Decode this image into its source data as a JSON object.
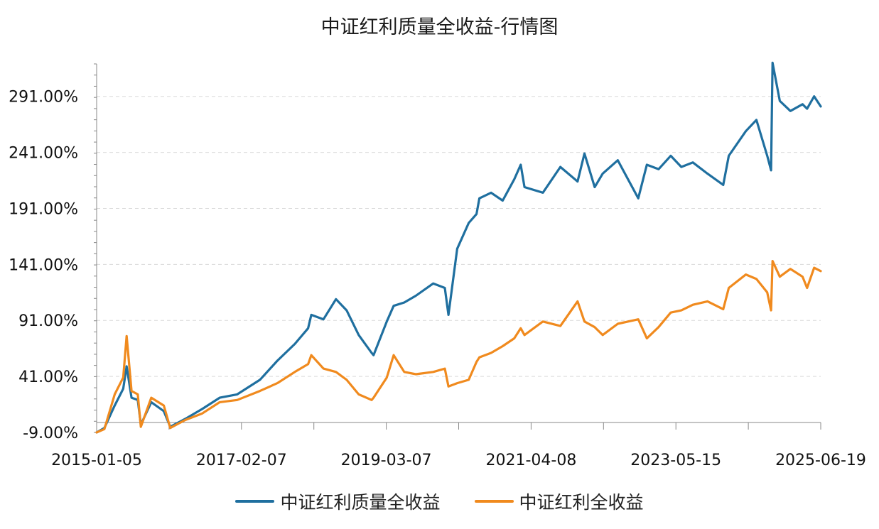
{
  "chart_data": {
    "type": "line",
    "title": "中证红利质量全收益-行情图",
    "xlabel": "",
    "ylabel": "",
    "ylim": [
      -9,
      320
    ],
    "y_ticks": [
      "-9.00%",
      "41.00%",
      "91.00%",
      "141.00%",
      "191.00%",
      "241.00%",
      "291.00%"
    ],
    "y_tick_values": [
      -9,
      41,
      91,
      141,
      191,
      241,
      291
    ],
    "x_range": [
      "2015-01-05",
      "2025-06-19"
    ],
    "x_ticks": [
      "2015-01-05",
      "2017-02-07",
      "2019-03-07",
      "2021-04-08",
      "2023-05-15",
      "2025-06-19"
    ],
    "grid": true,
    "legend_position": "bottom",
    "series": [
      {
        "name": "中证红利质量全收益",
        "color": "#1f6f9f",
        "x": [
          "2015-01-05",
          "2015-02-15",
          "2015-04-10",
          "2015-05-25",
          "2015-06-12",
          "2015-07-08",
          "2015-08-10",
          "2015-08-26",
          "2015-10-20",
          "2015-12-25",
          "2016-01-28",
          "2016-04-15",
          "2016-07-15",
          "2016-10-15",
          "2017-01-15",
          "2017-05-15",
          "2017-08-15",
          "2017-11-15",
          "2018-01-24",
          "2018-02-10",
          "2018-04-15",
          "2018-06-20",
          "2018-08-15",
          "2018-10-18",
          "2018-12-25",
          "2019-01-04",
          "2019-03-15",
          "2019-04-20",
          "2019-06-15",
          "2019-08-15",
          "2019-11-15",
          "2020-01-15",
          "2020-02-03",
          "2020-03-20",
          "2020-05-20",
          "2020-06-30",
          "2020-07-15",
          "2020-09-15",
          "2020-11-15",
          "2021-01-15",
          "2021-02-18",
          "2021-03-10",
          "2021-06-15",
          "2021-09-15",
          "2021-12-15",
          "2022-01-20",
          "2022-03-15",
          "2022-04-26",
          "2022-07-15",
          "2022-10-31",
          "2022-12-15",
          "2023-02-15",
          "2023-04-20",
          "2023-06-15",
          "2023-08-15",
          "2023-10-31",
          "2024-01-22",
          "2024-02-20",
          "2024-05-20",
          "2024-07-15",
          "2024-09-10",
          "2024-09-30",
          "2024-10-08",
          "2024-11-15",
          "2025-01-10",
          "2025-03-15",
          "2025-04-08",
          "2025-05-15",
          "2025-06-19"
        ],
        "values": [
          -9,
          -5,
          15,
          30,
          50,
          22,
          20,
          -2,
          18,
          10,
          -4,
          3,
          12,
          22,
          25,
          38,
          55,
          70,
          84,
          96,
          92,
          110,
          100,
          78,
          62,
          60,
          90,
          104,
          107,
          113,
          124,
          120,
          96,
          155,
          178,
          186,
          200,
          205,
          198,
          217,
          230,
          210,
          205,
          228,
          215,
          240,
          210,
          222,
          234,
          200,
          230,
          226,
          238,
          228,
          232,
          222,
          212,
          238,
          260,
          270,
          238,
          225,
          321,
          287,
          278,
          284,
          280,
          291,
          282
        ]
      },
      {
        "name": "中证红利全收益",
        "color": "#f08a1e",
        "x": [
          "2015-01-05",
          "2015-02-15",
          "2015-04-10",
          "2015-05-25",
          "2015-06-12",
          "2015-07-08",
          "2015-08-10",
          "2015-08-26",
          "2015-10-20",
          "2015-12-25",
          "2016-01-28",
          "2016-04-15",
          "2016-07-15",
          "2016-10-15",
          "2017-01-15",
          "2017-05-15",
          "2017-08-15",
          "2017-11-15",
          "2018-01-24",
          "2018-02-10",
          "2018-04-15",
          "2018-06-20",
          "2018-08-15",
          "2018-10-18",
          "2018-12-25",
          "2019-01-04",
          "2019-03-15",
          "2019-04-20",
          "2019-06-15",
          "2019-08-15",
          "2019-11-15",
          "2020-01-15",
          "2020-02-03",
          "2020-03-20",
          "2020-05-20",
          "2020-06-30",
          "2020-07-15",
          "2020-09-15",
          "2020-11-15",
          "2021-01-15",
          "2021-02-18",
          "2021-03-10",
          "2021-06-15",
          "2021-09-15",
          "2021-12-15",
          "2022-01-20",
          "2022-03-15",
          "2022-04-26",
          "2022-07-15",
          "2022-10-31",
          "2022-12-15",
          "2023-02-15",
          "2023-04-20",
          "2023-06-15",
          "2023-08-15",
          "2023-10-31",
          "2024-01-22",
          "2024-02-20",
          "2024-05-20",
          "2024-07-15",
          "2024-09-10",
          "2024-09-30",
          "2024-10-08",
          "2024-11-15",
          "2025-01-10",
          "2025-03-15",
          "2025-04-08",
          "2025-05-15",
          "2025-06-19"
        ],
        "values": [
          -9,
          -6,
          25,
          40,
          77,
          28,
          25,
          -4,
          22,
          15,
          -5,
          2,
          8,
          18,
          20,
          28,
          35,
          45,
          52,
          60,
          48,
          45,
          38,
          25,
          20,
          22,
          40,
          60,
          45,
          43,
          45,
          48,
          32,
          35,
          38,
          54,
          58,
          62,
          68,
          75,
          84,
          78,
          90,
          86,
          108,
          90,
          85,
          78,
          88,
          92,
          75,
          85,
          98,
          100,
          105,
          108,
          101,
          120,
          132,
          128,
          116,
          100,
          144,
          130,
          137,
          130,
          120,
          138,
          135
        ]
      }
    ]
  }
}
